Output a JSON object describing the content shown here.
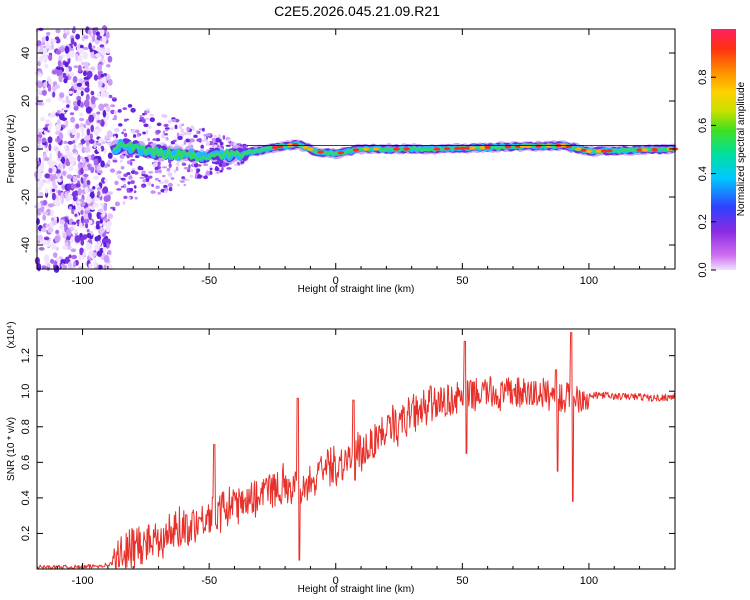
{
  "title": "C2E5.2026.045.21.09.R21",
  "chart_data": [
    {
      "type": "heatmap",
      "xlabel": "Height of straight line (km)",
      "ylabel": "Frequency (Hz)",
      "xlim": [
        -118,
        134
      ],
      "ylim": [
        -50,
        50
      ],
      "x_ticks": [
        "-100",
        "-50",
        "0",
        "50",
        "100"
      ],
      "y_ticks": [
        "-40",
        "-20",
        "0",
        "20",
        "40"
      ],
      "colorbar": {
        "label": "Normalized spectral amplitude",
        "range": [
          0,
          1
        ],
        "ticks": [
          "0.0",
          "0.2",
          "0.4",
          "0.6",
          "0.8"
        ]
      },
      "noise_region": [
        -118,
        -89
      ],
      "transition_region": [
        -89,
        -35
      ],
      "tonal_line_center_hz": [
        {
          "x": -85,
          "y": 1.5
        },
        {
          "x": -70,
          "y": -1.5
        },
        {
          "x": -50,
          "y": -3
        },
        {
          "x": -35,
          "y": -1.5
        },
        {
          "x": -22,
          "y": 1
        },
        {
          "x": -15,
          "y": 2
        },
        {
          "x": -8,
          "y": -1
        },
        {
          "x": 0,
          "y": -2
        },
        {
          "x": 10,
          "y": 0
        },
        {
          "x": 40,
          "y": 0
        },
        {
          "x": 70,
          "y": 1
        },
        {
          "x": 90,
          "y": 1.5
        },
        {
          "x": 100,
          "y": -1
        },
        {
          "x": 134,
          "y": 0
        }
      ]
    },
    {
      "type": "line",
      "xlabel": "Height of straight line (km)",
      "ylabel": "SNR (10 * v/v)",
      "y_multiplier": "(x10⁴)",
      "xlim": [
        -118,
        134
      ],
      "ylim": [
        0,
        1.35
      ],
      "x_ticks": [
        "-100",
        "-50",
        "0",
        "50",
        "100"
      ],
      "y_ticks": [
        "0.2",
        "0.4",
        "0.6",
        "0.8",
        "1.0",
        "1.2"
      ],
      "series": [
        {
          "color": "#e8302a",
          "x": [
            -118,
            -110,
            -100,
            -92,
            -88,
            -85,
            -80,
            -75,
            -70,
            -65,
            -60,
            -55,
            -50,
            -45,
            -40,
            -35,
            -30,
            -25,
            -20,
            -15,
            -10,
            -5,
            0,
            5,
            10,
            15,
            20,
            25,
            30,
            35,
            40,
            45,
            50,
            55,
            60,
            65,
            70,
            75,
            80,
            85,
            90,
            95,
            100,
            105,
            110,
            115,
            120,
            125,
            134
          ],
          "values": [
            0.01,
            0.01,
            0.01,
            0.02,
            0.03,
            0.08,
            0.12,
            0.15,
            0.18,
            0.2,
            0.24,
            0.27,
            0.3,
            0.33,
            0.36,
            0.4,
            0.42,
            0.45,
            0.48,
            0.46,
            0.5,
            0.55,
            0.58,
            0.62,
            0.65,
            0.72,
            0.78,
            0.83,
            0.86,
            0.9,
            0.93,
            0.95,
            0.97,
            0.98,
            1.0,
            0.97,
            1.0,
            0.98,
            0.99,
            0.98,
            0.96,
            0.97,
            0.97,
            0.98,
            0.97,
            0.97,
            0.97,
            0.96,
            0.97
          ]
        }
      ],
      "spikes": [
        {
          "x": -15,
          "y": 0.96,
          "y_low": 0.05
        },
        {
          "x": 51,
          "y": 1.28,
          "y_low": 0.65
        },
        {
          "x": 93,
          "y": 1.33,
          "y_low": 0.38
        },
        {
          "x": 87,
          "y": 1.12,
          "y_low": 0.55
        },
        {
          "x": -48,
          "y": 0.7,
          "y_low": 0.25
        },
        {
          "x": 7,
          "y": 0.95,
          "y_low": 0.5
        }
      ]
    }
  ]
}
